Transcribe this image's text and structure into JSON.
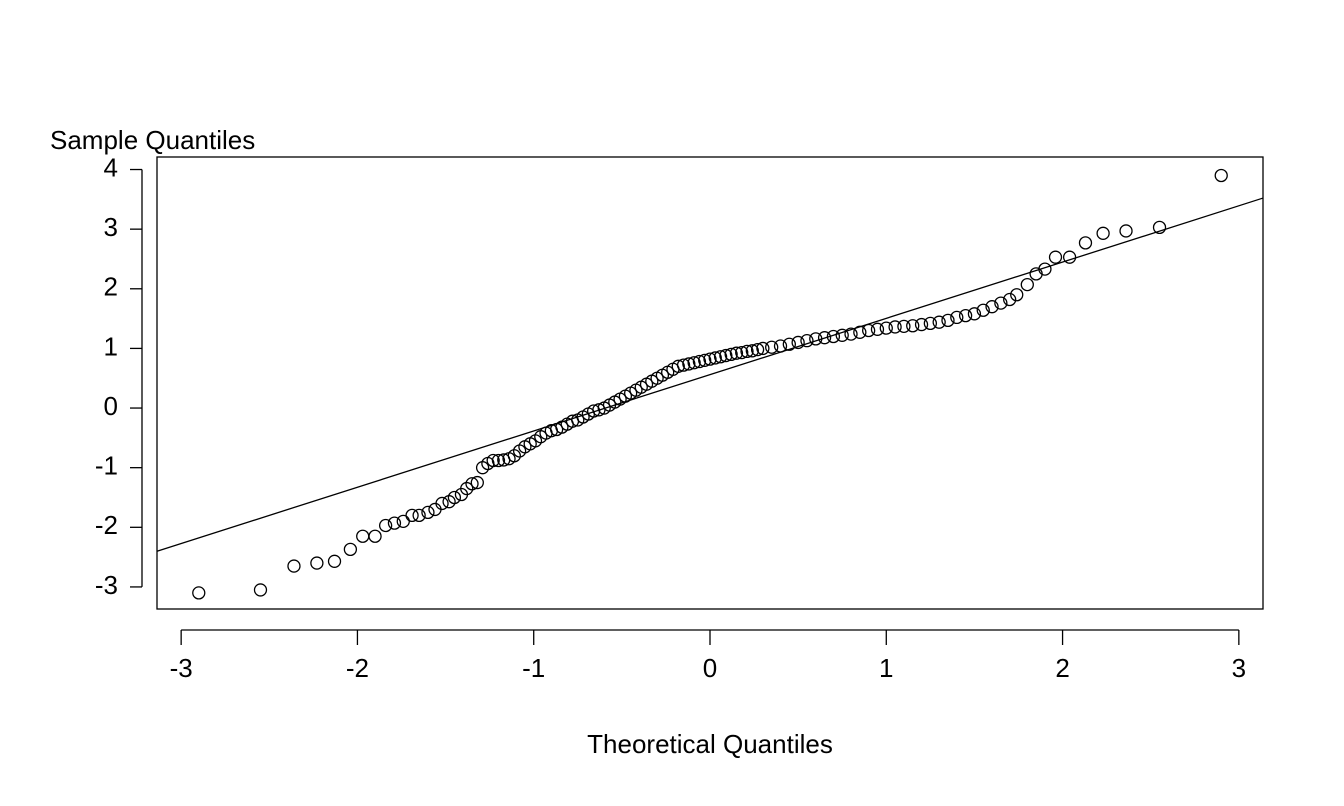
{
  "chart_data": {
    "type": "scatter",
    "ylabel": "Sample Quantiles",
    "xlabel": "Theoretical Quantiles",
    "x": [
      -2.9,
      -2.55,
      -2.36,
      -2.23,
      -2.13,
      -2.04,
      -1.97,
      -1.9,
      -1.84,
      -1.79,
      -1.74,
      -1.69,
      -1.65,
      -1.6,
      -1.56,
      -1.52,
      -1.48,
      -1.45,
      -1.41,
      -1.38,
      -1.35,
      -1.32,
      -1.29,
      -1.26,
      -1.23,
      -1.2,
      -1.17,
      -1.14,
      -1.11,
      -1.08,
      -1.05,
      -1.02,
      -0.99,
      -0.96,
      -0.93,
      -0.9,
      -0.87,
      -0.84,
      -0.81,
      -0.78,
      -0.75,
      -0.72,
      -0.69,
      -0.66,
      -0.63,
      -0.6,
      -0.57,
      -0.54,
      -0.51,
      -0.48,
      -0.45,
      -0.42,
      -0.39,
      -0.36,
      -0.33,
      -0.3,
      -0.27,
      -0.24,
      -0.21,
      -0.18,
      -0.15,
      -0.12,
      -0.09,
      -0.06,
      -0.03,
      0,
      0.03,
      0.06,
      0.09,
      0.12,
      0.15,
      0.18,
      0.21,
      0.24,
      0.27,
      0.3,
      0.35,
      0.4,
      0.45,
      0.5,
      0.55,
      0.6,
      0.65,
      0.7,
      0.75,
      0.8,
      0.85,
      0.9,
      0.95,
      1.0,
      1.05,
      1.1,
      1.15,
      1.2,
      1.25,
      1.3,
      1.35,
      1.4,
      1.45,
      1.5,
      1.55,
      1.6,
      1.65,
      1.7,
      1.74,
      1.8,
      1.85,
      1.9,
      1.96,
      2.04,
      2.13,
      2.23,
      2.36,
      2.55,
      2.9
    ],
    "values": [
      -3.1,
      -3.05,
      -2.65,
      -2.6,
      -2.57,
      -2.37,
      -2.15,
      -2.15,
      -1.97,
      -1.93,
      -1.9,
      -1.8,
      -1.8,
      -1.75,
      -1.7,
      -1.6,
      -1.57,
      -1.5,
      -1.45,
      -1.35,
      -1.27,
      -1.25,
      -1.0,
      -0.93,
      -0.88,
      -0.88,
      -0.87,
      -0.85,
      -0.8,
      -0.72,
      -0.65,
      -0.6,
      -0.55,
      -0.48,
      -0.42,
      -0.38,
      -0.36,
      -0.32,
      -0.27,
      -0.22,
      -0.2,
      -0.15,
      -0.1,
      -0.05,
      -0.03,
      0.0,
      0.05,
      0.1,
      0.15,
      0.2,
      0.25,
      0.3,
      0.35,
      0.4,
      0.45,
      0.5,
      0.55,
      0.6,
      0.65,
      0.7,
      0.72,
      0.74,
      0.76,
      0.78,
      0.8,
      0.82,
      0.84,
      0.86,
      0.88,
      0.9,
      0.92,
      0.93,
      0.95,
      0.96,
      0.98,
      1.0,
      1.02,
      1.04,
      1.07,
      1.1,
      1.13,
      1.16,
      1.18,
      1.2,
      1.22,
      1.24,
      1.27,
      1.3,
      1.32,
      1.34,
      1.36,
      1.37,
      1.38,
      1.4,
      1.42,
      1.44,
      1.47,
      1.52,
      1.55,
      1.58,
      1.64,
      1.7,
      1.76,
      1.82,
      1.9,
      2.07,
      2.25,
      2.33,
      2.53,
      2.53,
      2.77,
      2.93,
      2.97,
      3.03,
      3.9
    ],
    "reference_line": {
      "intercept": 0.56,
      "slope": 0.944
    },
    "xlim": [
      -3.137,
      3.137
    ],
    "ylim": [
      -3.37,
      4.21
    ],
    "xticks": [
      -3,
      -2,
      -1,
      0,
      1,
      2,
      3
    ],
    "yticks": [
      -3,
      -2,
      -1,
      0,
      1,
      2,
      3,
      4
    ],
    "color": "#000000"
  }
}
